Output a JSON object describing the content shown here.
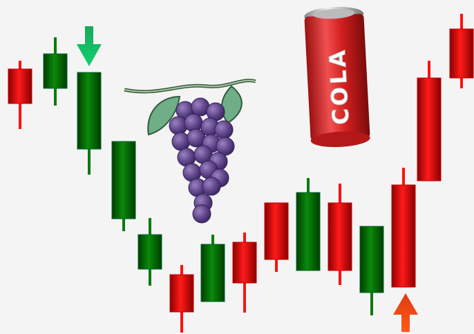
{
  "can": {
    "label": "COLA"
  }
}
